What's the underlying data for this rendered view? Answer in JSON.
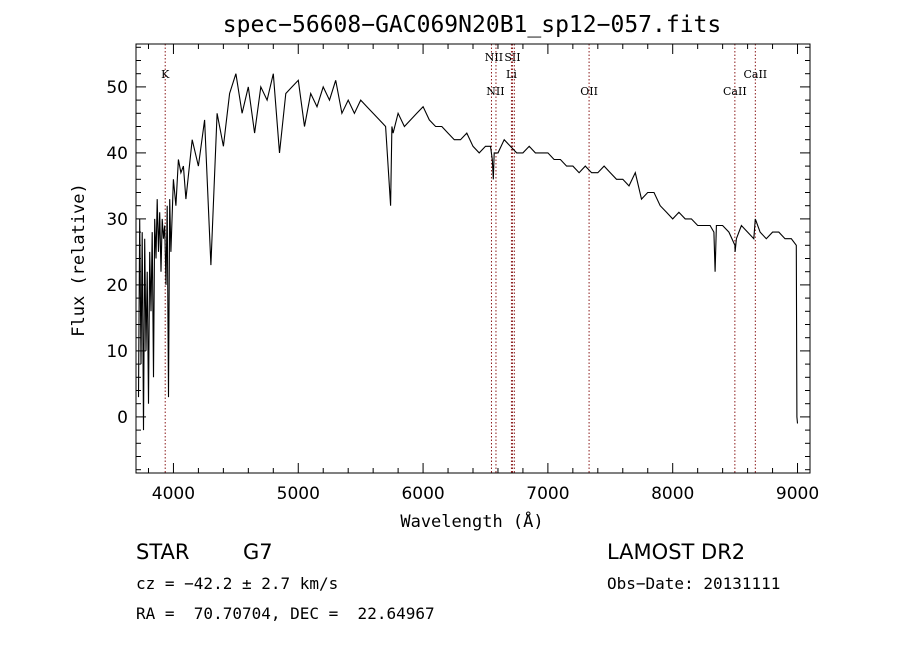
{
  "chart_data": {
    "type": "line",
    "title": "spec−56608−GAC069N20B1_sp12−057.fits",
    "xlabel": "Wavelength (Å)",
    "ylabel": "Flux (relative)",
    "xlim": [
      3700,
      9100
    ],
    "ylim": [
      -8.5,
      56.5
    ],
    "xticks": [
      4000,
      5000,
      6000,
      7000,
      8000,
      9000
    ],
    "yticks": [
      0,
      10,
      20,
      30,
      40,
      50
    ],
    "series": [
      {
        "x": [
          3720,
          3730,
          3740,
          3750,
          3760,
          3770,
          3780,
          3790,
          3800,
          3810,
          3820,
          3830,
          3840,
          3850,
          3860,
          3870,
          3880,
          3890,
          3900,
          3910,
          3920,
          3930,
          3940,
          3950,
          3960,
          3970,
          3980,
          4000,
          4020,
          4040,
          4060,
          4080,
          4100,
          4150,
          4200,
          4250,
          4300,
          4350,
          4400,
          4450,
          4500,
          4550,
          4600,
          4650,
          4700,
          4750,
          4800,
          4850,
          4900,
          4950,
          5000,
          5050,
          5100,
          5150,
          5200,
          5250,
          5300,
          5350,
          5400,
          5450,
          5500,
          5550,
          5600,
          5650,
          5700,
          5740,
          5750,
          5760,
          5800,
          5850,
          5900,
          5950,
          6000,
          6050,
          6100,
          6150,
          6200,
          6250,
          6300,
          6350,
          6400,
          6450,
          6500,
          6540,
          6555,
          6563,
          6570,
          6600,
          6650,
          6700,
          6750,
          6800,
          6850,
          6900,
          6950,
          7000,
          7050,
          7100,
          7150,
          7200,
          7250,
          7300,
          7350,
          7400,
          7450,
          7500,
          7550,
          7600,
          7650,
          7700,
          7750,
          7800,
          7850,
          7900,
          7950,
          8000,
          8050,
          8100,
          8150,
          8200,
          8250,
          8300,
          8330,
          8340,
          8350,
          8400,
          8450,
          8498,
          8500,
          8510,
          8550,
          8600,
          8650,
          8662,
          8700,
          8750,
          8800,
          8850,
          8900,
          8950,
          8990,
          8995,
          9000
        ],
        "values": [
          3,
          30,
          8,
          28,
          -2,
          27,
          10,
          22,
          2,
          25,
          16,
          28,
          6,
          30,
          24,
          33,
          25,
          31,
          22,
          30,
          27,
          29,
          20,
          32,
          3,
          33,
          25,
          36,
          32,
          39,
          37,
          38,
          33,
          42,
          38,
          45,
          23,
          46,
          41,
          49,
          52,
          46,
          50,
          43,
          50,
          48,
          52,
          40,
          49,
          50,
          51,
          44,
          49,
          47,
          50,
          48,
          51,
          46,
          48,
          46,
          48,
          47,
          46,
          45,
          44,
          32,
          44,
          43,
          46,
          44,
          45,
          46,
          47,
          45,
          44,
          44,
          43,
          42,
          42,
          43,
          41,
          40,
          41,
          41,
          39,
          36,
          40,
          40,
          42,
          41,
          40,
          40,
          41,
          40,
          40,
          40,
          39,
          39,
          38,
          38,
          37,
          38,
          37,
          37,
          38,
          37,
          36,
          36,
          35,
          37,
          33,
          34,
          34,
          32,
          31,
          30,
          31,
          30,
          30,
          29,
          29,
          29,
          28,
          22,
          29,
          29,
          28,
          26,
          25,
          27,
          29,
          28,
          27,
          30,
          28,
          27,
          28,
          28,
          27,
          27,
          26,
          0,
          -1
        ]
      }
    ],
    "annotations": [
      {
        "text": "K",
        "x": 3934
      },
      {
        "text": "NII",
        "x": 6548
      },
      {
        "text": "NII",
        "x": 6584
      },
      {
        "text": "SII",
        "x": 6716
      },
      {
        "text": "SII",
        "x": 6731
      },
      {
        "text": "Li",
        "x": 6708
      },
      {
        "text": "OII",
        "x": 7330
      },
      {
        "text": "CaII",
        "x": 8498
      },
      {
        "text": "CaII",
        "x": 8662
      }
    ]
  },
  "info": {
    "object_class": "STAR",
    "subclass": "G7",
    "survey": "LAMOST DR2",
    "redshift": "cz = −42.2 ± 2.7 km/s",
    "obs_date": "Obs−Date: 20131111",
    "coords": "RA =  70.70704, DEC =  22.64967"
  }
}
